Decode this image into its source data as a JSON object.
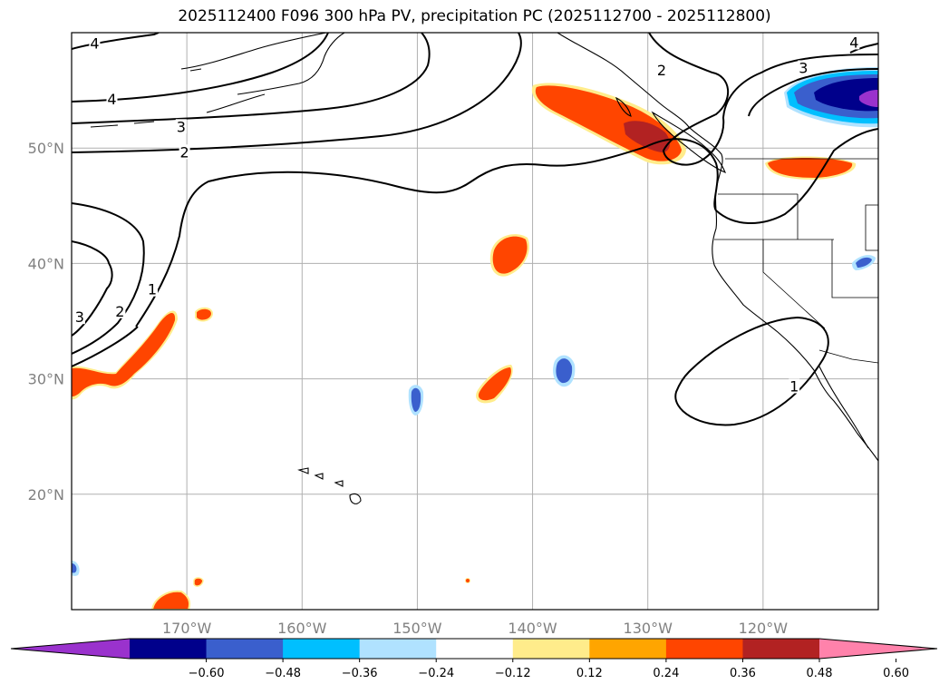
{
  "title": "2025112400 F096 300 hPa PV, precipitation PC (2025112700 - 2025112800)",
  "map": {
    "lon_range": [
      -180,
      -110
    ],
    "lat_range": [
      10,
      60
    ],
    "lon_labels": [
      {
        "lon": -170,
        "text": "170°W"
      },
      {
        "lon": -160,
        "text": "160°W"
      },
      {
        "lon": -150,
        "text": "150°W"
      },
      {
        "lon": -140,
        "text": "140°W"
      },
      {
        "lon": -130,
        "text": "130°W"
      },
      {
        "lon": -120,
        "text": "120°W"
      }
    ],
    "lat_labels": [
      {
        "lat": 50,
        "text": "50°N"
      },
      {
        "lat": 40,
        "text": "40°N"
      },
      {
        "lat": 30,
        "text": "30°N"
      },
      {
        "lat": 20,
        "text": "20°N"
      }
    ],
    "contour_labels": [
      {
        "text": "4",
        "lon": -178,
        "lat": 59
      },
      {
        "text": "4",
        "lon": -176.5,
        "lat": 54.2
      },
      {
        "text": "3",
        "lon": -170.5,
        "lat": 51.8
      },
      {
        "text": "2",
        "lon": -170.2,
        "lat": 49.6
      },
      {
        "text": "3",
        "lon": -179.3,
        "lat": 35.3
      },
      {
        "text": "2",
        "lon": -175.8,
        "lat": 35.8
      },
      {
        "text": "1",
        "lon": -173,
        "lat": 37.7
      },
      {
        "text": "2",
        "lon": -128.8,
        "lat": 56.7
      },
      {
        "text": "3",
        "lon": -116.5,
        "lat": 56.9
      },
      {
        "text": "4",
        "lon": -112.1,
        "lat": 59.1
      },
      {
        "text": "1",
        "lon": -117.3,
        "lat": 29.3
      }
    ]
  },
  "colorbar": {
    "colors": [
      "#9a32cd",
      "#00008b",
      "#3a5fcd",
      "#00bfff",
      "#b0e2ff",
      "#ffffff",
      "#ffec8b",
      "#ffa500",
      "#ff4500",
      "#b22222",
      "#ff82ab"
    ],
    "ticks": [
      "−0.60",
      "−0.48",
      "−0.36",
      "−0.24",
      "−0.12",
      "0.12",
      "0.24",
      "0.36",
      "0.48",
      "0.60"
    ]
  }
}
